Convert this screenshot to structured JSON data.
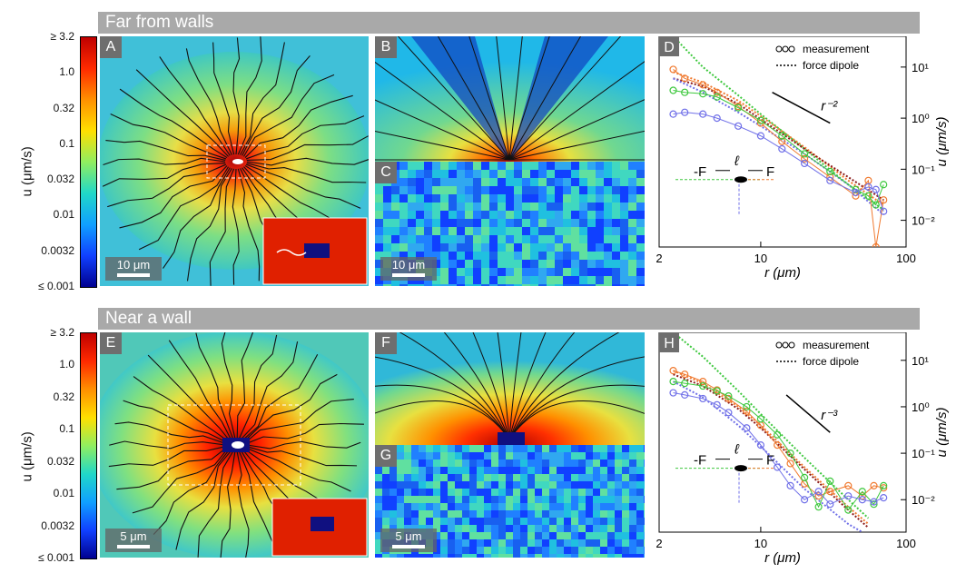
{
  "banners": {
    "top": "Far from walls",
    "bottom": "Near a wall"
  },
  "colorbar": {
    "title": "u (μm/s)",
    "ticks": [
      "≥ 3.2",
      "1.0",
      "0.32",
      "0.1",
      "0.032",
      "0.01",
      "0.0032",
      "≤ 0.001"
    ],
    "colors": [
      "#c00000",
      "#ff2a00",
      "#ff9000",
      "#ffe000",
      "#90ee60",
      "#20d8c8",
      "#10a0ff",
      "#1040ff",
      "#000090"
    ]
  },
  "panels": {
    "A": {
      "label": "A",
      "scale": "10 μm"
    },
    "B": {
      "label": "B"
    },
    "C": {
      "label": "C",
      "scale": "10 μm"
    },
    "D": {
      "label": "D"
    },
    "E": {
      "label": "E",
      "scale": "5 μm"
    },
    "F": {
      "label": "F"
    },
    "G": {
      "label": "G",
      "scale": "5 μm"
    },
    "H": {
      "label": "H"
    }
  },
  "chart_data": [
    {
      "type": "scatter",
      "panel": "D",
      "xlabel": "r (μm)",
      "ylabel": "u (μm/s)",
      "xscale": "log",
      "yscale": "log",
      "xlim": [
        2,
        100
      ],
      "ylim": [
        0.003,
        40
      ],
      "xticks": [
        "2",
        "10",
        "100"
      ],
      "yticks": [
        "10⁻²",
        "10⁻¹",
        "10⁰",
        "10¹"
      ],
      "legend": {
        "position": "top-right",
        "entries": [
          "measurement",
          "force dipole"
        ]
      },
      "slope_label": "r⁻²",
      "diagram": {
        "left_force": "-F",
        "right_force": "F",
        "length": "ℓ"
      },
      "colors": {
        "orange": "#f07a30",
        "green": "#3ec83e",
        "blue": "#7070e8",
        "darkred": "#8b1a1a"
      },
      "series": [
        {
          "color": "orange",
          "x": [
            2.5,
            3,
            4,
            5,
            7,
            10,
            14,
            20,
            30,
            45,
            55,
            62,
            70
          ],
          "y": [
            9,
            6,
            4.5,
            3.2,
            1.7,
            0.8,
            0.35,
            0.16,
            0.07,
            0.03,
            0.06,
            0.003,
            0.025
          ]
        },
        {
          "color": "green",
          "x": [
            2.5,
            3,
            4,
            5,
            7,
            10,
            14,
            20,
            30,
            45,
            55,
            62,
            70
          ],
          "y": [
            3.5,
            3.2,
            3.0,
            2.6,
            1.6,
            0.9,
            0.45,
            0.2,
            0.09,
            0.04,
            0.03,
            0.02,
            0.05
          ]
        },
        {
          "color": "blue",
          "x": [
            2.5,
            3,
            4,
            5,
            7,
            10,
            14,
            20,
            30,
            45,
            55,
            62,
            70
          ],
          "y": [
            1.2,
            1.3,
            1.2,
            1.0,
            0.7,
            0.45,
            0.25,
            0.13,
            0.06,
            0.035,
            0.045,
            0.04,
            0.015
          ]
        }
      ],
      "dipole_lines": [
        {
          "color": "green",
          "x": [
            2.5,
            4,
            7,
            10,
            20,
            40,
            70
          ],
          "y": [
            40,
            10,
            2.8,
            1.2,
            0.25,
            0.05,
            0.016
          ]
        },
        {
          "color": "orange",
          "x": [
            2.5,
            4,
            7,
            10,
            20,
            40,
            70
          ],
          "y": [
            8,
            5,
            2.2,
            1.1,
            0.27,
            0.06,
            0.02
          ]
        },
        {
          "color": "darkred",
          "x": [
            2.5,
            4,
            7,
            10,
            20,
            40,
            70
          ],
          "y": [
            6,
            4.2,
            1.9,
            0.95,
            0.25,
            0.07,
            0.025
          ]
        },
        {
          "color": "blue",
          "x": [
            2.5,
            4,
            7,
            10,
            20,
            40,
            70
          ],
          "y": [
            6,
            3.2,
            1.3,
            0.7,
            0.2,
            0.05,
            0.013
          ]
        }
      ],
      "slope_line": {
        "x": [
          12,
          30
        ],
        "y": [
          3.2,
          0.8
        ]
      }
    },
    {
      "type": "scatter",
      "panel": "H",
      "xlabel": "r (μm)",
      "ylabel": "u (μm/s)",
      "xscale": "log",
      "yscale": "log",
      "xlim": [
        2,
        100
      ],
      "ylim": [
        0.002,
        40
      ],
      "xticks": [
        "2",
        "10",
        "100"
      ],
      "yticks": [
        "10⁻²",
        "10⁻¹",
        "10⁰",
        "10¹"
      ],
      "legend": {
        "position": "top-right",
        "entries": [
          "measurement",
          "force dipole"
        ]
      },
      "slope_label": "r⁻³",
      "diagram": {
        "left_force": "-F",
        "right_force": "F",
        "length": "ℓ"
      },
      "colors": {
        "orange": "#f07a30",
        "green": "#3ec83e",
        "blue": "#7070e8",
        "darkred": "#8b1a1a"
      },
      "series": [
        {
          "color": "orange",
          "x": [
            2.5,
            3,
            4,
            5,
            6,
            8,
            10,
            13,
            16,
            20,
            25,
            30,
            40,
            50,
            60,
            70
          ],
          "y": [
            6,
            5,
            3.5,
            2.3,
            1.5,
            0.8,
            0.4,
            0.15,
            0.06,
            0.022,
            0.012,
            0.015,
            0.02,
            0.012,
            0.02,
            0.018
          ]
        },
        {
          "color": "green",
          "x": [
            2.5,
            3,
            4,
            5,
            6,
            8,
            10,
            13,
            16,
            20,
            25,
            30,
            40,
            50,
            60,
            70
          ],
          "y": [
            3.5,
            3.2,
            2.8,
            2.2,
            1.7,
            1.0,
            0.55,
            0.25,
            0.1,
            0.03,
            0.007,
            0.025,
            0.006,
            0.015,
            0.008,
            0.02
          ]
        },
        {
          "color": "blue",
          "x": [
            2.5,
            3,
            4,
            5,
            6,
            8,
            10,
            13,
            16,
            20,
            25,
            30,
            40,
            50,
            60,
            70
          ],
          "y": [
            2.0,
            1.8,
            1.5,
            1.1,
            0.75,
            0.35,
            0.15,
            0.05,
            0.02,
            0.01,
            0.015,
            0.008,
            0.012,
            0.01,
            0.009,
            0.011
          ]
        }
      ],
      "dipole_lines": [
        {
          "color": "green",
          "x": [
            2.5,
            4,
            7,
            10,
            20,
            40,
            55
          ],
          "y": [
            40,
            12,
            2.2,
            0.7,
            0.08,
            0.01,
            0.004
          ]
        },
        {
          "color": "orange",
          "x": [
            2.5,
            4,
            7,
            10,
            20,
            40,
            55
          ],
          "y": [
            6,
            3.2,
            1.0,
            0.4,
            0.05,
            0.007,
            0.003
          ]
        },
        {
          "color": "darkred",
          "x": [
            2.5,
            4,
            7,
            10,
            20,
            40,
            55
          ],
          "y": [
            5,
            2.8,
            0.9,
            0.35,
            0.045,
            0.006,
            0.0025
          ]
        },
        {
          "color": "blue",
          "x": [
            2.5,
            4,
            7,
            10,
            20,
            40,
            50
          ],
          "y": [
            3.5,
            1.6,
            0.4,
            0.14,
            0.017,
            0.003,
            0.002
          ]
        }
      ],
      "slope_line": {
        "x": [
          15,
          30
        ],
        "y": [
          1.8,
          0.28
        ]
      }
    }
  ]
}
